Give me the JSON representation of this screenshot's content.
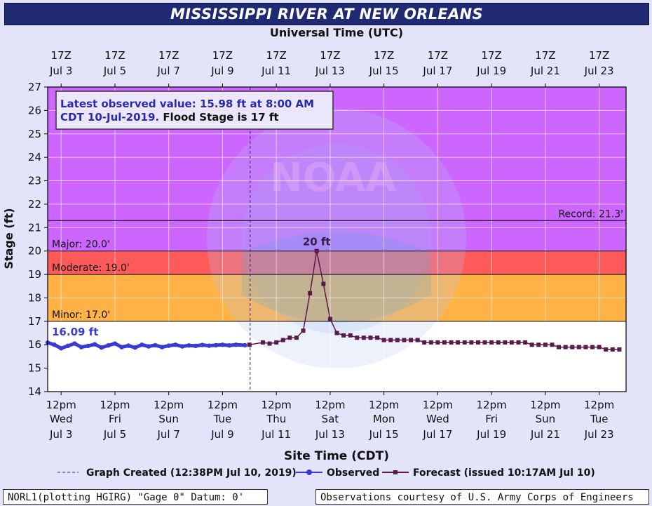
{
  "title": "MISSISSIPPI RIVER AT NEW ORLEANS",
  "top_axis_title": "Universal Time (UTC)",
  "bottom_axis_title": "Site Time (CDT)",
  "y_axis_title": "Stage (ft)",
  "info_box": {
    "line1": "Latest observed value: 15.98 ft at 8:00 AM",
    "line2a": "CDT 10-Jul-2019. ",
    "line2b": "Flood Stage is 17 ft"
  },
  "thresholds": [
    {
      "name": "record",
      "label": "Record: 21.3'",
      "value": 21.3,
      "color": "#000000"
    },
    {
      "name": "major",
      "label": "Major: 20.0'",
      "value": 20.0,
      "color": "#cc66ff"
    },
    {
      "name": "moderate",
      "label": "Moderate: 19.0'",
      "value": 19.0,
      "color": "#ff5a5a"
    },
    {
      "name": "minor",
      "label": "Minor: 17.0'",
      "value": 17.0,
      "color": "#ffb347"
    }
  ],
  "legend": {
    "created": "Graph Created (12:38PM Jul 10, 2019)",
    "observed": "Observed",
    "forecast": "Forecast (issued 10:17AM Jul 10)"
  },
  "footer": {
    "left": "NORL1(plotting HGIRG) \"Gage 0\" Datum: 0'",
    "right": "Observations courtesy of U.S. Army Corps of Engineers"
  },
  "watermark": "NOAA",
  "colors": {
    "observed": "#3a3ad6",
    "forecast": "#5a1a4a",
    "above_major": "#cc66ff",
    "major_band": "#ff5a5a",
    "moderate_band": "#ffb347",
    "normal_band": "#ffffff",
    "title_bg": "#1f2a73"
  },
  "chart_data": {
    "type": "line",
    "xlabel": "Site Time (CDT)",
    "ylabel": "Stage (ft)",
    "ylim": [
      14,
      27
    ],
    "yticks": [
      14,
      15,
      16,
      17,
      18,
      19,
      20,
      21,
      22,
      23,
      24,
      25,
      26,
      27
    ],
    "xlim": [
      "2019-07-03 00:00",
      "2019-07-24 12:00"
    ],
    "grid": true,
    "utc_ticks": [
      {
        "top": "17Z",
        "bottom": "Jul 3",
        "at": "2019-07-03 12:00"
      },
      {
        "top": "17Z",
        "bottom": "Jul 5",
        "at": "2019-07-05 12:00"
      },
      {
        "top": "17Z",
        "bottom": "Jul 7",
        "at": "2019-07-07 12:00"
      },
      {
        "top": "17Z",
        "bottom": "Jul 9",
        "at": "2019-07-09 12:00"
      },
      {
        "top": "17Z",
        "bottom": "Jul 11",
        "at": "2019-07-11 12:00"
      },
      {
        "top": "17Z",
        "bottom": "Jul 13",
        "at": "2019-07-13 12:00"
      },
      {
        "top": "17Z",
        "bottom": "Jul 15",
        "at": "2019-07-15 12:00"
      },
      {
        "top": "17Z",
        "bottom": "Jul 17",
        "at": "2019-07-17 12:00"
      },
      {
        "top": "17Z",
        "bottom": "Jul 19",
        "at": "2019-07-19 12:00"
      },
      {
        "top": "17Z",
        "bottom": "Jul 21",
        "at": "2019-07-21 12:00"
      },
      {
        "top": "17Z",
        "bottom": "Jul 23",
        "at": "2019-07-23 12:00"
      }
    ],
    "cdt_ticks": [
      {
        "time": "12pm",
        "day": "Wed",
        "date": "Jul 3",
        "at": "2019-07-03 12:00"
      },
      {
        "time": "12pm",
        "day": "Fri",
        "date": "Jul 5",
        "at": "2019-07-05 12:00"
      },
      {
        "time": "12pm",
        "day": "Sun",
        "date": "Jul 7",
        "at": "2019-07-07 12:00"
      },
      {
        "time": "12pm",
        "day": "Tue",
        "date": "Jul 9",
        "at": "2019-07-09 12:00"
      },
      {
        "time": "12pm",
        "day": "Thu",
        "date": "Jul 11",
        "at": "2019-07-11 12:00"
      },
      {
        "time": "12pm",
        "day": "Sat",
        "date": "Jul 13",
        "at": "2019-07-13 12:00"
      },
      {
        "time": "12pm",
        "day": "Mon",
        "date": "Jul 15",
        "at": "2019-07-15 12:00"
      },
      {
        "time": "12pm",
        "day": "Wed",
        "date": "Jul 17",
        "at": "2019-07-17 12:00"
      },
      {
        "time": "12pm",
        "day": "Fri",
        "date": "Jul 19",
        "at": "2019-07-19 12:00"
      },
      {
        "time": "12pm",
        "day": "Sun",
        "date": "Jul 21",
        "at": "2019-07-21 12:00"
      },
      {
        "time": "12pm",
        "day": "Tue",
        "date": "Jul 23",
        "at": "2019-07-23 12:00"
      }
    ],
    "graph_created": "2019-07-10 12:38",
    "series": [
      {
        "name": "Observed",
        "color": "#3a3ad6",
        "x": [
          "2019-07-03 00:00",
          "2019-07-03 06:00",
          "2019-07-03 12:00",
          "2019-07-03 18:00",
          "2019-07-04 00:00",
          "2019-07-04 06:00",
          "2019-07-04 12:00",
          "2019-07-04 18:00",
          "2019-07-05 00:00",
          "2019-07-05 06:00",
          "2019-07-05 12:00",
          "2019-07-05 18:00",
          "2019-07-06 00:00",
          "2019-07-06 06:00",
          "2019-07-06 12:00",
          "2019-07-06 18:00",
          "2019-07-07 00:00",
          "2019-07-07 06:00",
          "2019-07-07 12:00",
          "2019-07-07 18:00",
          "2019-07-08 00:00",
          "2019-07-08 06:00",
          "2019-07-08 12:00",
          "2019-07-08 18:00",
          "2019-07-09 00:00",
          "2019-07-09 06:00",
          "2019-07-09 12:00",
          "2019-07-09 18:00",
          "2019-07-10 00:00",
          "2019-07-10 08:00"
        ],
        "y": [
          16.09,
          16.0,
          15.85,
          15.95,
          16.05,
          15.9,
          15.95,
          16.02,
          15.88,
          15.97,
          16.05,
          15.9,
          15.96,
          15.88,
          16.0,
          15.93,
          15.98,
          15.9,
          15.96,
          16.0,
          15.93,
          15.97,
          15.95,
          15.99,
          15.96,
          15.98,
          16.0,
          15.97,
          16.0,
          15.98
        ]
      },
      {
        "name": "Forecast",
        "color": "#5a1a4a",
        "x": [
          "2019-07-10 12:00",
          "2019-07-11 00:00",
          "2019-07-11 06:00",
          "2019-07-11 12:00",
          "2019-07-11 18:00",
          "2019-07-12 00:00",
          "2019-07-12 06:00",
          "2019-07-12 12:00",
          "2019-07-12 18:00",
          "2019-07-13 00:00",
          "2019-07-13 06:00",
          "2019-07-13 12:00",
          "2019-07-13 18:00",
          "2019-07-14 00:00",
          "2019-07-14 06:00",
          "2019-07-14 12:00",
          "2019-07-14 18:00",
          "2019-07-15 00:00",
          "2019-07-15 06:00",
          "2019-07-15 12:00",
          "2019-07-15 18:00",
          "2019-07-16 00:00",
          "2019-07-16 06:00",
          "2019-07-16 12:00",
          "2019-07-16 18:00",
          "2019-07-17 00:00",
          "2019-07-17 06:00",
          "2019-07-17 12:00",
          "2019-07-17 18:00",
          "2019-07-18 00:00",
          "2019-07-18 06:00",
          "2019-07-18 12:00",
          "2019-07-18 18:00",
          "2019-07-19 00:00",
          "2019-07-19 06:00",
          "2019-07-19 12:00",
          "2019-07-19 18:00",
          "2019-07-20 00:00",
          "2019-07-20 06:00",
          "2019-07-20 12:00",
          "2019-07-20 18:00",
          "2019-07-21 00:00",
          "2019-07-21 06:00",
          "2019-07-21 12:00",
          "2019-07-21 18:00",
          "2019-07-22 00:00",
          "2019-07-22 06:00",
          "2019-07-22 12:00",
          "2019-07-22 18:00",
          "2019-07-23 00:00",
          "2019-07-23 06:00",
          "2019-07-23 12:00",
          "2019-07-23 18:00",
          "2019-07-24 00:00",
          "2019-07-24 06:00"
        ],
        "y": [
          16.0,
          16.1,
          16.05,
          16.1,
          16.2,
          16.3,
          16.3,
          16.6,
          18.2,
          20.0,
          18.6,
          17.1,
          16.5,
          16.4,
          16.4,
          16.3,
          16.3,
          16.3,
          16.3,
          16.2,
          16.2,
          16.2,
          16.2,
          16.2,
          16.2,
          16.1,
          16.1,
          16.1,
          16.1,
          16.1,
          16.1,
          16.1,
          16.1,
          16.1,
          16.1,
          16.1,
          16.1,
          16.1,
          16.1,
          16.1,
          16.1,
          16.0,
          16.0,
          16.0,
          16.0,
          15.9,
          15.9,
          15.9,
          15.9,
          15.9,
          15.9,
          15.9,
          15.8,
          15.8,
          15.8
        ]
      }
    ],
    "annotations": [
      {
        "text": "16.09 ft",
        "x": "2019-07-03 00:00",
        "y": 16.09,
        "series": "Observed"
      },
      {
        "text": "20 ft",
        "x": "2019-07-13 00:00",
        "y": 20.0,
        "series": "Forecast"
      }
    ]
  }
}
